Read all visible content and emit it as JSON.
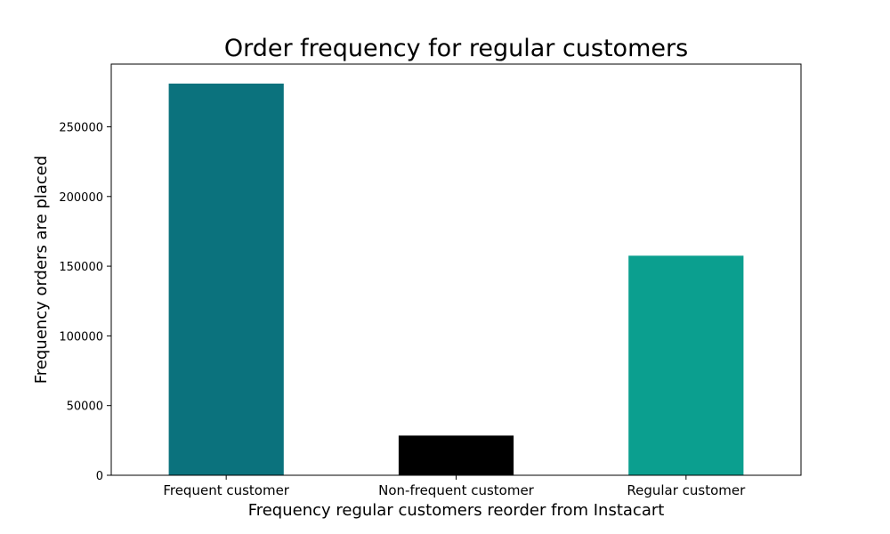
{
  "chart_data": {
    "type": "bar",
    "title": "Order frequency for regular customers",
    "xlabel": "Frequency regular customers reorder from Instacart",
    "ylabel": "Frequency orders are placed",
    "categories": [
      "Frequent customer",
      "Non-frequent customer",
      "Regular customer"
    ],
    "values": [
      281000,
      28500,
      157500
    ],
    "colors": [
      "#0b727d",
      "#000000",
      "#0b9f8f"
    ],
    "yticks": [
      0,
      50000,
      100000,
      150000,
      200000,
      250000
    ],
    "ytick_labels": [
      "0",
      "50000",
      "100000",
      "150000",
      "200000",
      "250000"
    ],
    "ylim": [
      0,
      295000
    ],
    "grid": false,
    "legend": "none"
  }
}
